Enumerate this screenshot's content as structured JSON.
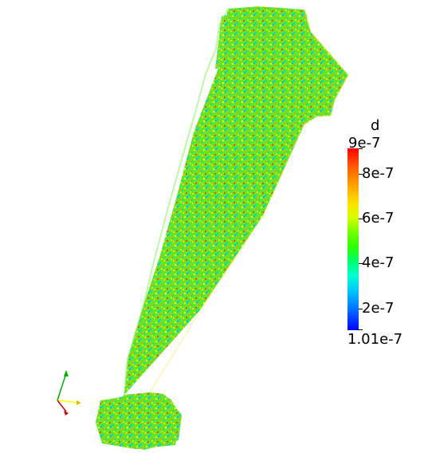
{
  "scalar_bar": {
    "title": "d",
    "max_label": "9e-7",
    "min_label": "1.01e-7",
    "tick_labels": [
      "8e-7",
      "6e-7",
      "4e-7",
      "2e-7"
    ]
  },
  "colors": {
    "background": "#ffffff",
    "axis_x": "#ff0000",
    "axis_y": "#ffff00",
    "axis_z": "#00aa00",
    "colormap_high": "#ff0000",
    "colormap_mid": "#00ff00",
    "colormap_low": "#0000ff"
  },
  "icons": {
    "orientation_axes": "orientation-axes-icon"
  }
}
